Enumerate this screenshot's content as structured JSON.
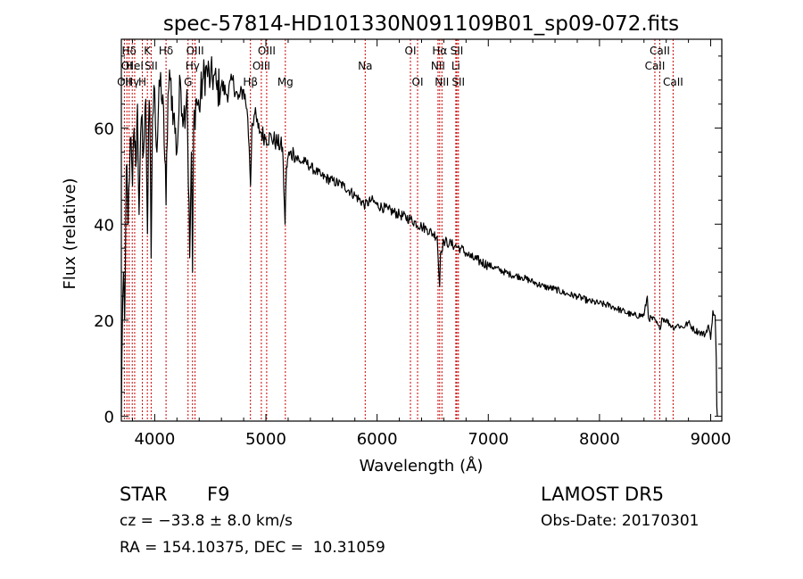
{
  "chart_data": {
    "type": "line",
    "title": "spec-57814-HD101330N091109B01_sp09-072.fits",
    "xlabel": "Wavelength (Å)",
    "ylabel": "Flux (relative)",
    "xlim": [
      3700,
      9100
    ],
    "ylim": [
      -1,
      78.5
    ],
    "x_ticks": [
      4000,
      5000,
      6000,
      7000,
      8000,
      9000
    ],
    "y_ticks": [
      0,
      20,
      40,
      60
    ],
    "grid": false,
    "line_color": "#000000",
    "marker_color": "#cc0000",
    "series": [
      {
        "x": [
          3700,
          3705,
          3712,
          3720,
          3730,
          3745,
          3760,
          3780,
          3800,
          3815,
          3830,
          3845,
          3860,
          3880,
          3900,
          3920,
          3935,
          3945,
          3955,
          3968,
          3980,
          4000,
          4020,
          4040,
          4060,
          4080,
          4102,
          4120,
          4140,
          4170,
          4200,
          4230,
          4260,
          4290,
          4315,
          4330,
          4340,
          4350,
          4370,
          4400,
          4430,
          4470,
          4500,
          4530,
          4560,
          4600,
          4650,
          4700,
          4750,
          4800,
          4830,
          4850,
          4862,
          4875,
          4900,
          4930,
          4960,
          5000,
          5050,
          5100,
          5150,
          5167,
          5172,
          5185,
          5200,
          5250,
          5300,
          5350,
          5400,
          5450,
          5500,
          5600,
          5700,
          5800,
          5893,
          5950,
          6000,
          6100,
          6200,
          6300,
          6400,
          6450,
          6500,
          6540,
          6555,
          6563,
          6570,
          6600,
          6650,
          6700,
          6750,
          6800,
          6850,
          6900,
          7000,
          7100,
          7200,
          7300,
          7400,
          7500,
          7600,
          7700,
          7800,
          7900,
          8000,
          8100,
          8200,
          8300,
          8400,
          8430,
          8440,
          8500,
          8542,
          8560,
          8600,
          8662,
          8700,
          8750,
          8800,
          8850,
          8900,
          8950,
          8980,
          9000,
          9020,
          9040,
          9050,
          9055,
          9060
        ],
        "y": [
          0,
          12,
          24,
          30,
          20,
          52,
          40,
          58,
          48,
          60,
          52,
          65,
          42,
          62,
          55,
          66,
          38,
          60,
          64,
          33,
          62,
          68,
          55,
          70,
          66,
          64,
          44,
          67,
          70,
          63,
          55,
          70,
          62,
          68,
          33,
          55,
          30,
          60,
          66,
          64,
          70,
          72,
          70,
          71,
          68,
          69,
          67,
          70,
          66,
          68,
          64,
          56,
          48,
          61,
          63,
          60,
          59,
          58,
          58,
          57,
          56,
          44,
          40,
          52,
          54,
          55,
          53,
          53,
          52,
          51,
          50,
          49,
          48,
          46,
          44,
          45,
          44,
          43,
          42,
          41,
          39.5,
          39,
          38,
          37.5,
          30,
          27,
          34,
          36.5,
          36,
          35.5,
          35,
          34,
          33,
          32.5,
          31.5,
          30.5,
          29.5,
          29,
          28,
          27,
          26.5,
          25.5,
          25,
          24,
          23.5,
          23,
          22,
          21,
          21,
          25,
          20.5,
          20,
          18,
          20.5,
          20,
          18.5,
          19,
          18.5,
          19.5,
          18,
          17.5,
          17,
          19,
          16,
          22,
          21,
          12,
          2,
          0
        ]
      }
    ],
    "lines": [
      {
        "w": 3727,
        "label": "OII",
        "row": 2
      },
      {
        "w": 3750,
        "label": "OI",
        "row": 1
      },
      {
        "w": 3770,
        "label": "Hδ",
        "row": 0
      },
      {
        "w": 3798,
        "label": "Hγ",
        "row": 2
      },
      {
        "w": 3820,
        "label": "HeI",
        "row": 1
      },
      {
        "w": 3889,
        "label": "H",
        "row": 2
      },
      {
        "w": 3934,
        "label": "K",
        "row": 0
      },
      {
        "w": 3968,
        "label": "SII",
        "row": 1
      },
      {
        "w": 4102,
        "label": "Hδ",
        "row": 0
      },
      {
        "w": 4300,
        "label": "G",
        "row": 2
      },
      {
        "w": 4340,
        "label": "Hγ",
        "row": 1
      },
      {
        "w": 4363,
        "label": "OIII",
        "row": 0
      },
      {
        "w": 4861,
        "label": "Hβ",
        "row": 2
      },
      {
        "w": 4959,
        "label": "OIII",
        "row": 1
      },
      {
        "w": 5007,
        "label": "OIII",
        "row": 0
      },
      {
        "w": 5175,
        "label": "Mg",
        "row": 2
      },
      {
        "w": 5893,
        "label": "Na",
        "row": 1
      },
      {
        "w": 6300,
        "label": "OI",
        "row": 0
      },
      {
        "w": 6364,
        "label": "OI",
        "row": 2
      },
      {
        "w": 6548,
        "label": "NII",
        "row": 1
      },
      {
        "w": 6563,
        "label": "Hα",
        "row": 0
      },
      {
        "w": 6583,
        "label": "NII",
        "row": 2
      },
      {
        "w": 6708,
        "label": "Li",
        "row": 1
      },
      {
        "w": 6717,
        "label": "SII",
        "row": 0
      },
      {
        "w": 6731,
        "label": "SII",
        "row": 2
      },
      {
        "w": 8498,
        "label": "CaII",
        "row": 1
      },
      {
        "w": 8542,
        "label": "CaII",
        "row": 0
      },
      {
        "w": 8662,
        "label": "CaII",
        "row": 2
      }
    ]
  },
  "info": {
    "class": "STAR",
    "subclass": "F9",
    "survey": "LAMOST DR5",
    "cz": "cz = −33.8 ± 8.0 km/s",
    "obs_date": "Obs-Date: 20170301",
    "radec": "RA = 154.10375, DEC =  10.31059"
  }
}
